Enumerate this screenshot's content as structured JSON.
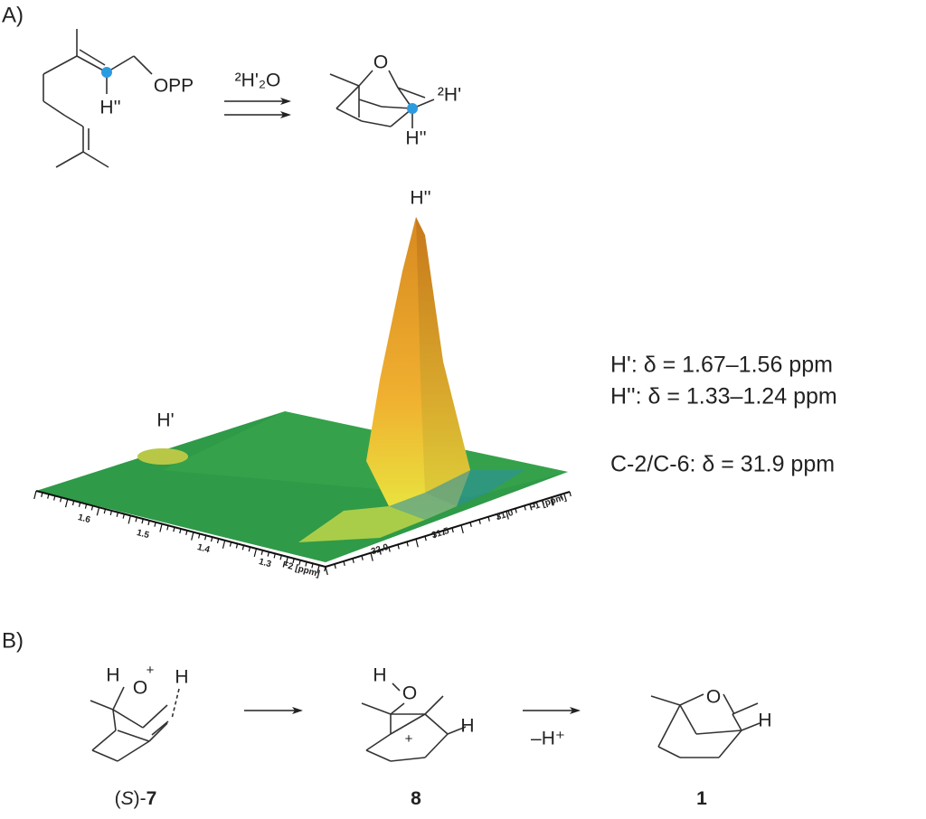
{
  "panel_a": {
    "label": "A)",
    "precursor": {
      "leaving_group": "OPP",
      "h_label": "H''"
    },
    "reagent": "²H'₂O",
    "product": {
      "atoms": [
        "O",
        "²H'",
        "H''"
      ]
    },
    "nmr": {
      "peak_labels": [
        "H''",
        "H'"
      ],
      "f2_ticks": [
        "1.6",
        "1.5",
        "1.4",
        "1.3"
      ],
      "f2_label": "F2 [ppm]",
      "f1_ticks": [
        "32.0",
        "31.5",
        "31.0"
      ],
      "f1_label": "F1 [ppm]"
    },
    "shifts": [
      "H': δ = 1.67–1.56 ppm",
      "H'': δ = 1.33–1.24 ppm",
      "C-2/C-6: δ = 31.9 ppm"
    ]
  },
  "panel_b": {
    "label": "B)",
    "compounds": [
      {
        "atoms": [
          "H",
          "O",
          "+",
          "H"
        ],
        "label_parts": [
          "(",
          "S",
          ")-",
          "7"
        ]
      },
      {
        "atoms": [
          "H",
          "O",
          "+",
          "H"
        ],
        "label_parts": [
          "8"
        ]
      },
      {
        "atoms": [
          "O",
          "H"
        ],
        "label_parts": [
          "1"
        ]
      }
    ],
    "step_label": "–H⁺"
  }
}
